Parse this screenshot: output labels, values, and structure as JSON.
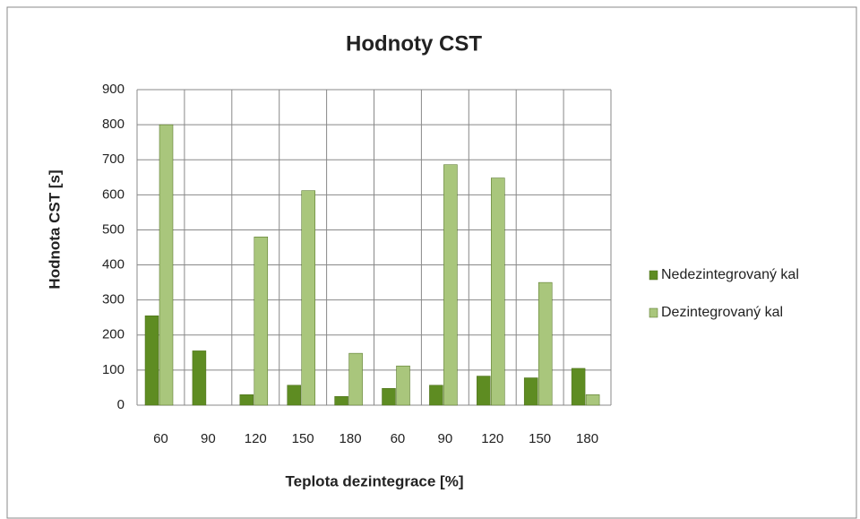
{
  "chart_data": {
    "type": "bar",
    "title": "Hodnoty CST",
    "x_label": "Teplota dezintegrace [%]",
    "y_label": "Hodnota CST [s]",
    "categories": [
      "60",
      "90",
      "120",
      "150",
      "180",
      "60",
      "90",
      "120",
      "150",
      "180"
    ],
    "series": [
      {
        "name": "Nedezintegrovaný kal",
        "color": "#5e8c22",
        "values": [
          255,
          155,
          30,
          57,
          25,
          48,
          57,
          83,
          78,
          105
        ]
      },
      {
        "name": "Dezintegrovaný kal",
        "color": "#a9c67c",
        "values": [
          800,
          0,
          480,
          612,
          148,
          112,
          686,
          648,
          350,
          30
        ]
      }
    ],
    "ylim": [
      0,
      900
    ],
    "yticks": [
      0,
      100,
      200,
      300,
      400,
      500,
      600,
      700,
      800,
      900
    ],
    "grid": true,
    "legend": "right"
  }
}
